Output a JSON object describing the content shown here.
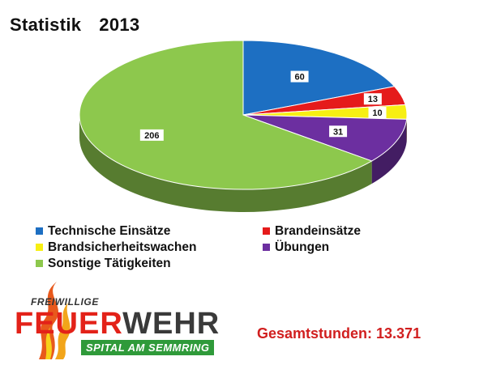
{
  "header": {
    "title": "Statistik",
    "year": "2013"
  },
  "chart_data": {
    "type": "pie",
    "title": "Statistik 2013",
    "slices": [
      {
        "label": "Technische Einsätze",
        "value": 60,
        "color": "#1d6fc2"
      },
      {
        "label": "Brandeinsätze",
        "value": 13,
        "color": "#e51b1b"
      },
      {
        "label": "Brandsicherheitswachen",
        "value": 10,
        "color": "#f7ef13"
      },
      {
        "label": "Übungen",
        "value": 31,
        "color": "#6c2fa0"
      },
      {
        "label": "Sonstige Tätigkeiten",
        "value": 206,
        "color": "#8dc84d"
      }
    ],
    "legend_position": "bottom",
    "style": "3d"
  },
  "legend": [
    {
      "label": "Technische Einsätze",
      "color": "#1d6fc2"
    },
    {
      "label": "Brandeinsätze",
      "color": "#e51b1b"
    },
    {
      "label": "Brandsicherheitswachen",
      "color": "#f7ef13"
    },
    {
      "label": "Übungen",
      "color": "#6c2fa0"
    },
    {
      "label": "Sonstige Tätigkeiten",
      "color": "#8dc84d"
    }
  ],
  "logo": {
    "line1": "FREIWILLIGE",
    "word_red": "FEUER",
    "word_dark": "WEHR",
    "line3": "SPITAL AM SEMMRING"
  },
  "total_label": "Gesamtstunden: 13.371"
}
